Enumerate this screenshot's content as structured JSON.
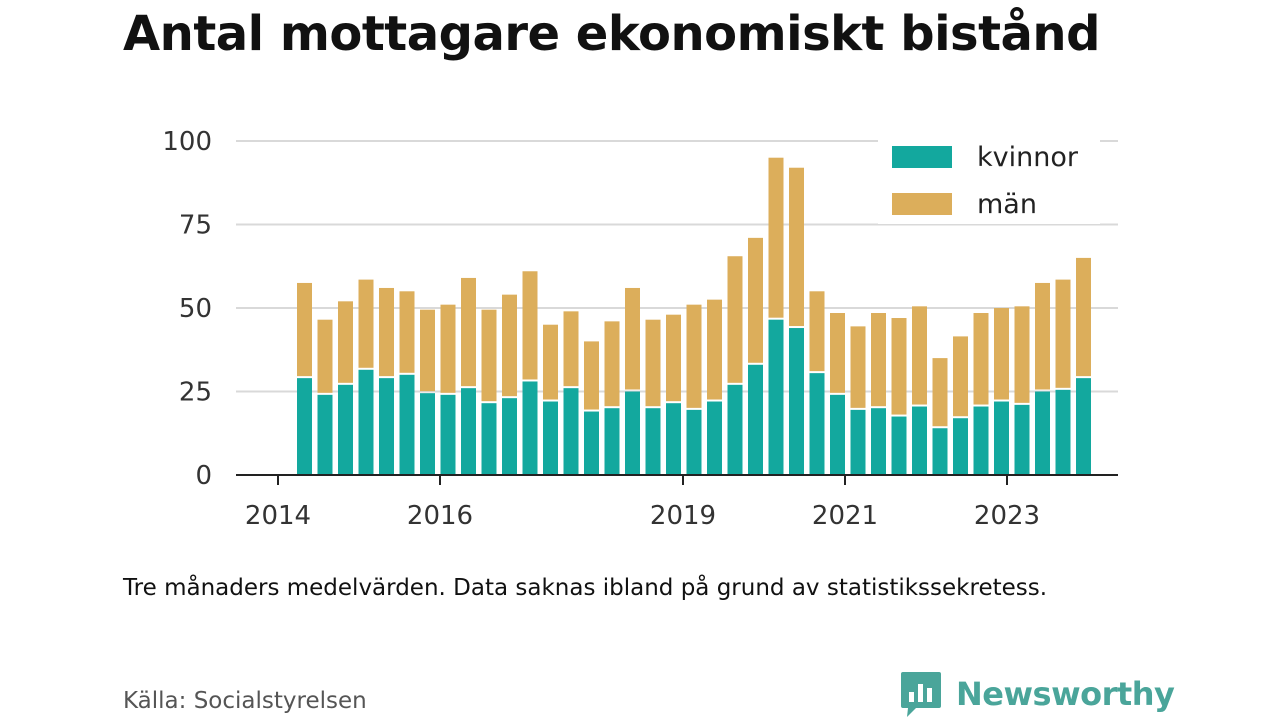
{
  "title": "Antal mottagare ekonomiskt bistånd",
  "note": "Tre månaders medelvärden. Data saknas ibland på grund av statistikssekretess.",
  "source": "Källa: Socialstyrelsen",
  "brand": {
    "name": "Newsworthy",
    "icon": "newsworthy-logo-icon"
  },
  "colors": {
    "kvinnor": "#13a89e",
    "man": "#dcae5b",
    "grid": "#d9d9d9",
    "axis": "#222222"
  },
  "chart_data": {
    "type": "bar",
    "stacked": true,
    "ylim": [
      0,
      100
    ],
    "yticks": [
      0,
      25,
      50,
      75,
      100
    ],
    "xticks": [
      "2014",
      "2016",
      "2019",
      "2021",
      "2023"
    ],
    "legend": {
      "position": "top-right",
      "entries": [
        "kvinnor",
        "män"
      ]
    },
    "grid": true,
    "series": [
      {
        "name": "kvinnor",
        "values": [
          29,
          24,
          27,
          31.5,
          29,
          30,
          24.5,
          24,
          26,
          21.5,
          23,
          28,
          22,
          26,
          19,
          20,
          25,
          20,
          21.5,
          19.5,
          22,
          27,
          33,
          46.5,
          44,
          30.5,
          24,
          19.5,
          20,
          17.5,
          20.5,
          14,
          17,
          20.5,
          22,
          21,
          25,
          25.5,
          29
        ]
      },
      {
        "name": "män",
        "values": [
          28.5,
          22.5,
          25,
          27,
          27,
          25,
          25,
          27,
          33,
          28,
          31,
          33,
          23,
          23,
          21,
          26,
          31,
          26.5,
          26.5,
          31.5,
          30.5,
          38.5,
          38,
          48.5,
          48,
          24.5,
          24.5,
          25,
          28.5,
          29.5,
          30,
          21,
          24.5,
          28,
          28,
          29.5,
          32.5,
          33,
          36
        ]
      }
    ]
  }
}
